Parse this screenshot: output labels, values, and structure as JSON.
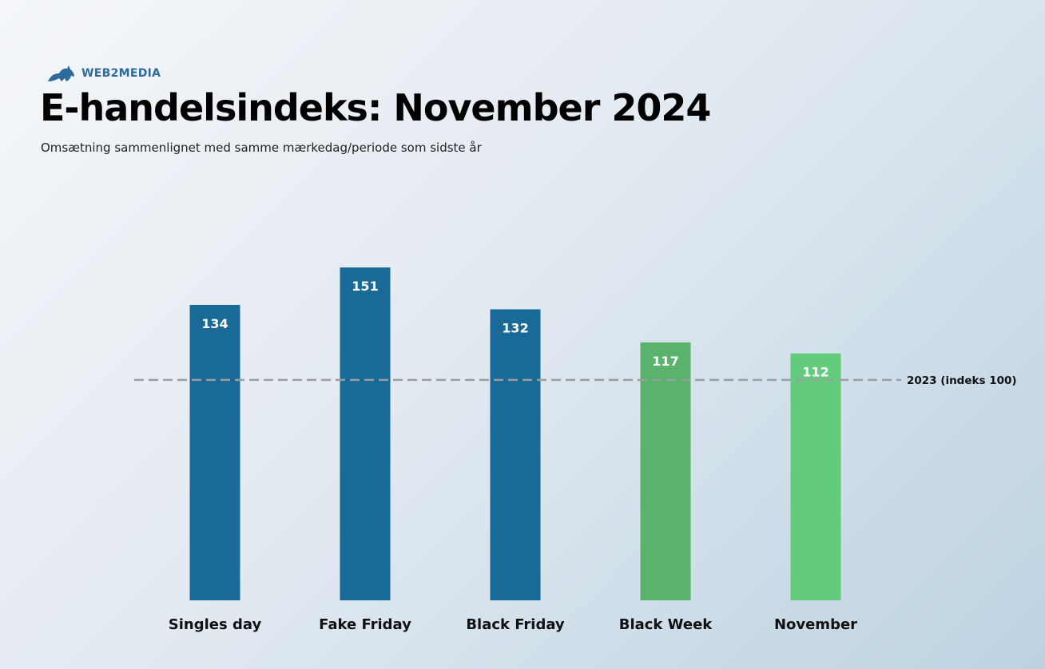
{
  "brand": {
    "name": "WEB2MEDIA",
    "logo_icon": "dog-logo-icon",
    "color": "#2f6a9c"
  },
  "chart_data": {
    "type": "bar",
    "title": "E-handelsindeks: November 2024",
    "subtitle": "Omsætning sammenlignet med samme mærkedag/periode som sidste år",
    "categories": [
      "Singles day",
      "Fake Friday",
      "Black Friday",
      "Black Week",
      "November"
    ],
    "values": [
      134,
      151,
      132,
      117,
      112
    ],
    "value_labels": [
      "134",
      "151",
      "132",
      "117",
      "112"
    ],
    "bar_colors": [
      "#196a97",
      "#196a97",
      "#196a97",
      "#59b36d",
      "#63cc7c"
    ],
    "ylim": [
      0,
      151
    ],
    "grid": false,
    "xlabel": "",
    "ylabel": "",
    "reference_line": {
      "value": 100,
      "label": "2023 (indeks 100)",
      "style": "dashed",
      "color": "#9a9ea3"
    }
  }
}
